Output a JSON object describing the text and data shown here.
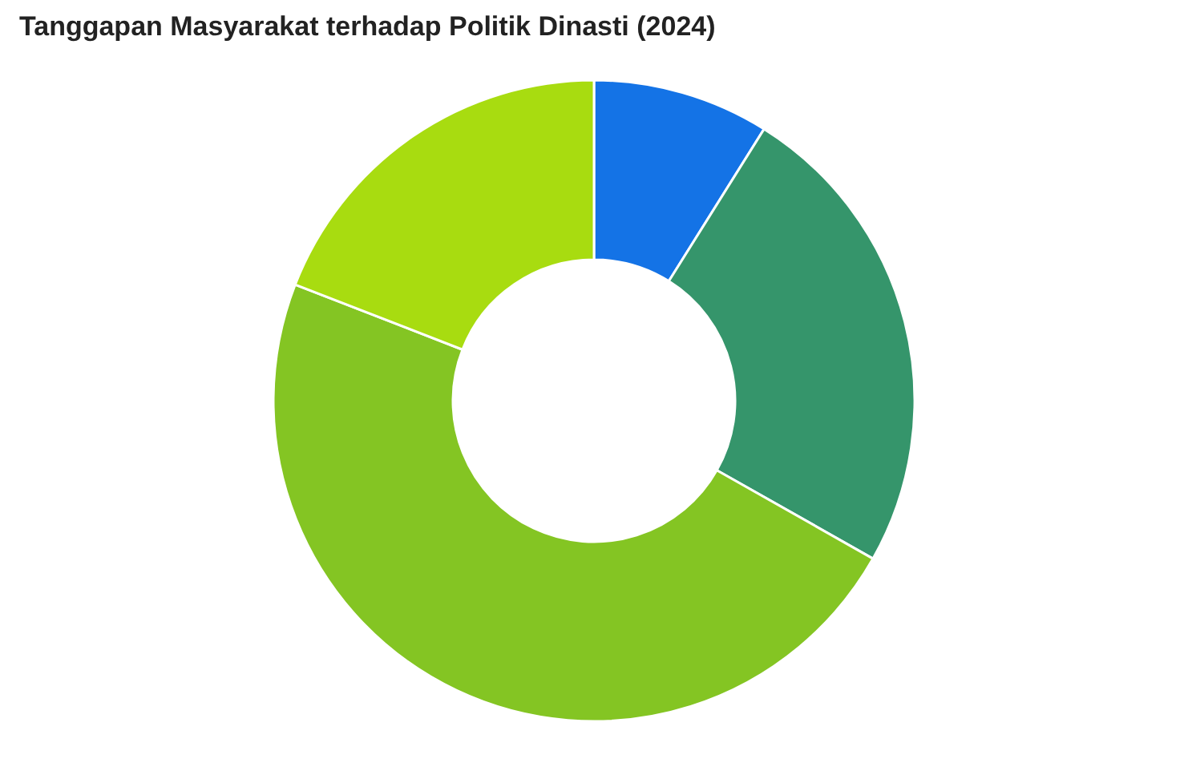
{
  "chart_data": {
    "type": "donut",
    "title": "Tanggapan Masyarakat terhadap Politik Dinasti (2024)",
    "categories": [
      null,
      null,
      null,
      null
    ],
    "values": [
      8.9,
      24.3,
      47.7,
      19.1
    ],
    "colors": [
      "#1473e6",
      "#35956b",
      "#84c523",
      "#a8dc10"
    ]
  }
}
